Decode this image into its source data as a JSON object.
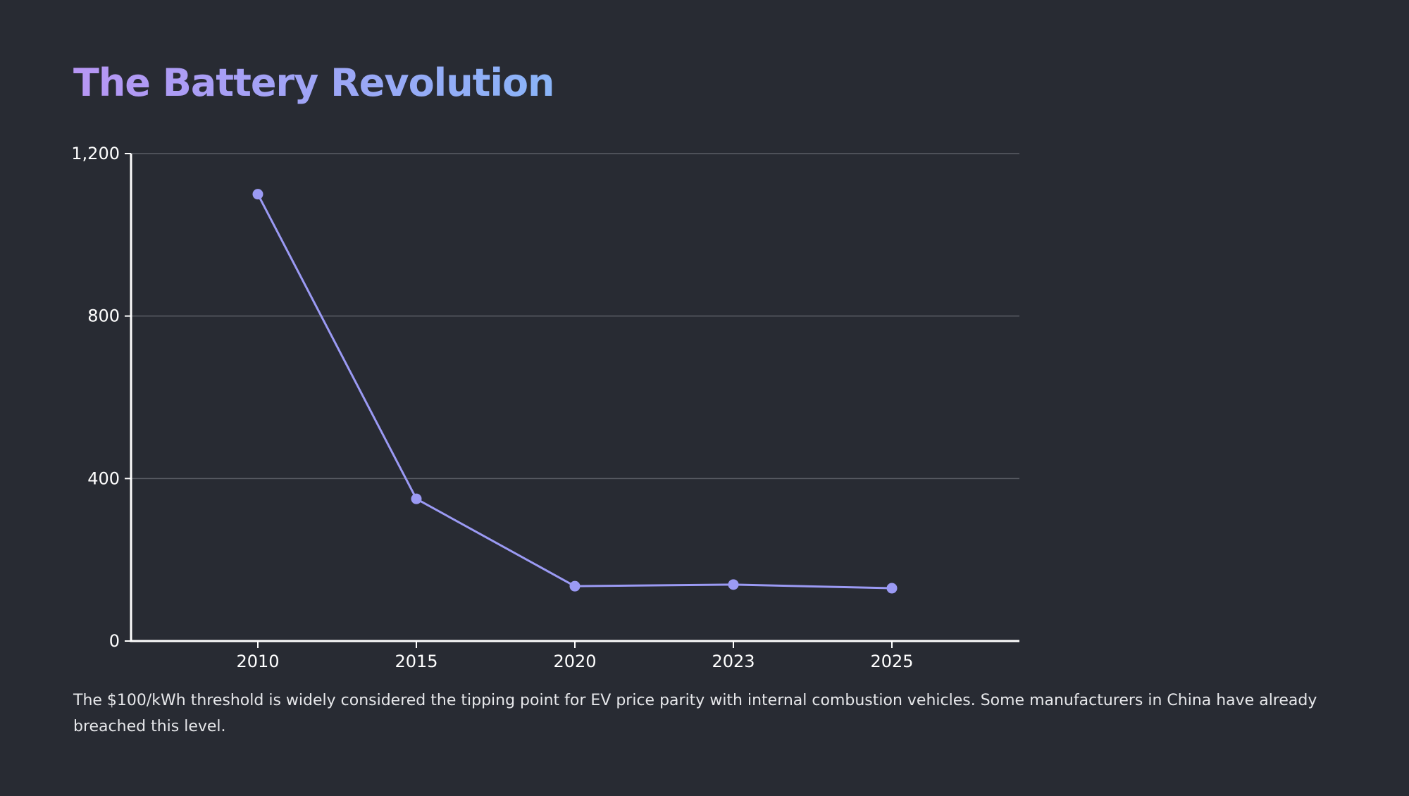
{
  "slide": {
    "title": "The Battery Revolution",
    "caption": "The $100/kWh threshold is widely considered the tipping point for EV price parity with internal combustion vehicles. Some manufacturers in China have already breached this level."
  },
  "colors": {
    "background": "#282b33",
    "series": "#9b9af4",
    "gridline": "#5b5e66",
    "axis": "#ffffff",
    "title_gradient_start": "#b796f4",
    "title_gradient_end": "#8ab4f8"
  },
  "chart_data": {
    "type": "line",
    "title": "",
    "xlabel": "",
    "ylabel": "",
    "categories": [
      "2010",
      "2015",
      "2020",
      "2023",
      "2025"
    ],
    "series": [
      {
        "values": [
          1100,
          350,
          135,
          139,
          130
        ]
      }
    ],
    "ylim": [
      0,
      1200
    ],
    "yticks": [
      0,
      400,
      800,
      1200
    ],
    "ytick_labels": [
      "0",
      "400",
      "800",
      "1,200"
    ],
    "grid": "horizontal",
    "legend": "none",
    "markers": true
  }
}
